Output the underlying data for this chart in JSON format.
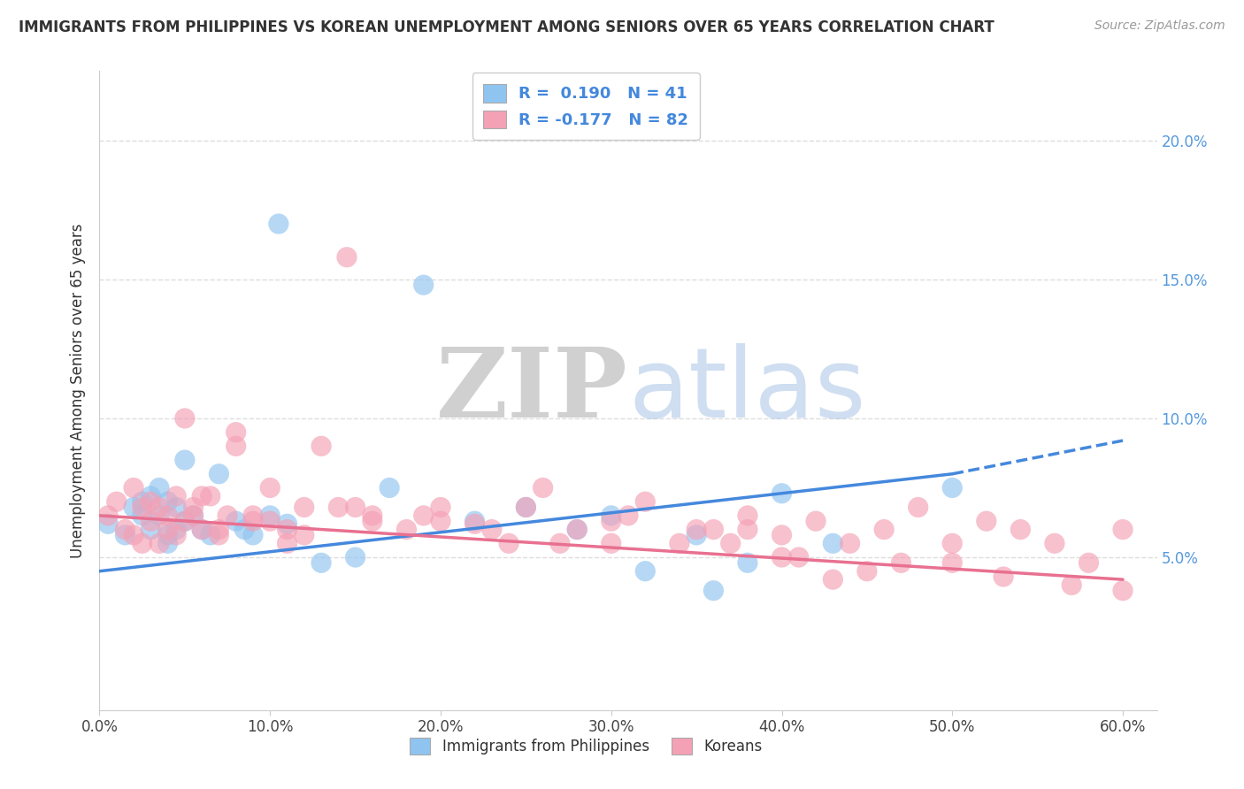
{
  "title": "IMMIGRANTS FROM PHILIPPINES VS KOREAN UNEMPLOYMENT AMONG SENIORS OVER 65 YEARS CORRELATION CHART",
  "source": "Source: ZipAtlas.com",
  "ylabel": "Unemployment Among Seniors over 65 years",
  "xlim": [
    0.0,
    0.62
  ],
  "ylim": [
    -0.005,
    0.225
  ],
  "xticks": [
    0.0,
    0.1,
    0.2,
    0.3,
    0.4,
    0.5,
    0.6
  ],
  "yticks": [
    0.05,
    0.1,
    0.15,
    0.2
  ],
  "legend_blue_r": "R =  0.190",
  "legend_blue_n": "N = 41",
  "legend_pink_r": "R = -0.177",
  "legend_pink_n": "N = 82",
  "blue_color": "#90C4F0",
  "pink_color": "#F4A0B5",
  "blue_line_color": "#4488DD",
  "pink_line_color": "#E87090",
  "watermark_zip": "ZIP",
  "watermark_atlas": "atlas",
  "blue_x": [
    0.005,
    0.015,
    0.02,
    0.025,
    0.025,
    0.03,
    0.03,
    0.035,
    0.035,
    0.04,
    0.04,
    0.04,
    0.045,
    0.045,
    0.05,
    0.05,
    0.055,
    0.06,
    0.065,
    0.07,
    0.08,
    0.085,
    0.09,
    0.1,
    0.105,
    0.11,
    0.13,
    0.15,
    0.17,
    0.19,
    0.22,
    0.25,
    0.28,
    0.3,
    0.32,
    0.35,
    0.38,
    0.4,
    0.43,
    0.5,
    0.36
  ],
  "blue_y": [
    0.062,
    0.058,
    0.068,
    0.07,
    0.065,
    0.072,
    0.06,
    0.075,
    0.065,
    0.058,
    0.07,
    0.055,
    0.068,
    0.06,
    0.085,
    0.063,
    0.065,
    0.06,
    0.058,
    0.08,
    0.063,
    0.06,
    0.058,
    0.065,
    0.17,
    0.062,
    0.048,
    0.05,
    0.075,
    0.148,
    0.063,
    0.068,
    0.06,
    0.065,
    0.045,
    0.058,
    0.048,
    0.073,
    0.055,
    0.075,
    0.038
  ],
  "pink_x": [
    0.005,
    0.01,
    0.015,
    0.02,
    0.02,
    0.025,
    0.025,
    0.03,
    0.03,
    0.035,
    0.035,
    0.04,
    0.04,
    0.045,
    0.045,
    0.05,
    0.05,
    0.055,
    0.055,
    0.06,
    0.065,
    0.07,
    0.075,
    0.08,
    0.09,
    0.1,
    0.11,
    0.12,
    0.13,
    0.145,
    0.16,
    0.18,
    0.2,
    0.22,
    0.24,
    0.26,
    0.28,
    0.3,
    0.32,
    0.34,
    0.36,
    0.38,
    0.4,
    0.42,
    0.44,
    0.46,
    0.48,
    0.5,
    0.52,
    0.54,
    0.56,
    0.58,
    0.6,
    0.25,
    0.35,
    0.45,
    0.3,
    0.4,
    0.5,
    0.2,
    0.15,
    0.08,
    0.1,
    0.12,
    0.14,
    0.06,
    0.07,
    0.09,
    0.11,
    0.16,
    0.19,
    0.23,
    0.27,
    0.31,
    0.37,
    0.41,
    0.47,
    0.53,
    0.57,
    0.38,
    0.43,
    0.6
  ],
  "pink_y": [
    0.065,
    0.07,
    0.06,
    0.075,
    0.058,
    0.068,
    0.055,
    0.07,
    0.063,
    0.068,
    0.055,
    0.065,
    0.06,
    0.072,
    0.058,
    0.1,
    0.063,
    0.065,
    0.068,
    0.06,
    0.072,
    0.058,
    0.065,
    0.09,
    0.063,
    0.075,
    0.06,
    0.068,
    0.09,
    0.158,
    0.065,
    0.06,
    0.068,
    0.062,
    0.055,
    0.075,
    0.06,
    0.063,
    0.07,
    0.055,
    0.06,
    0.065,
    0.058,
    0.063,
    0.055,
    0.06,
    0.068,
    0.055,
    0.063,
    0.06,
    0.055,
    0.048,
    0.06,
    0.068,
    0.06,
    0.045,
    0.055,
    0.05,
    0.048,
    0.063,
    0.068,
    0.095,
    0.063,
    0.058,
    0.068,
    0.072,
    0.06,
    0.065,
    0.055,
    0.063,
    0.065,
    0.06,
    0.055,
    0.065,
    0.055,
    0.05,
    0.048,
    0.043,
    0.04,
    0.06,
    0.042,
    0.038
  ]
}
